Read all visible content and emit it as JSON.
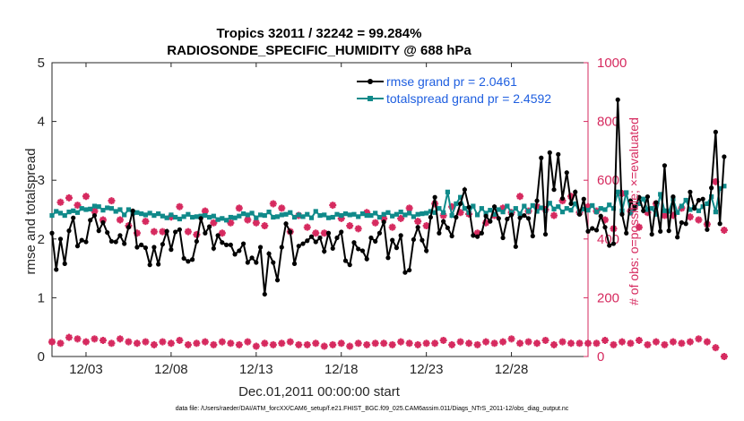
{
  "chart_data": {
    "type": "line",
    "title_line1": "Tropics 32011 / 32242 = 99.284%",
    "title_line2": "RADIOSONDE_SPECIFIC_HUMIDITY @ 688 hPa",
    "xlabel": "Dec.01,2011 00:00:00 start",
    "ylabel_left": "rmse and totalspread",
    "ylabel_right": "# of obs: o=possible; ×=evaluated",
    "footer": "data file: /Users/raeder/DAI/ATM_forcXX/CAM6_setup/f.e21.FHIST_BGC.f09_025.CAM6assim.011/Diags_NTrS_2011-12/obs_diag_output.nc",
    "xlim": [
      1,
      32.5
    ],
    "ylim_left": [
      0,
      5
    ],
    "ylim_right": [
      0,
      1000
    ],
    "xticks": [
      3,
      8,
      13,
      18,
      23,
      28
    ],
    "xtick_labels": [
      "12/03",
      "12/08",
      "12/13",
      "12/18",
      "12/23",
      "12/28"
    ],
    "yticks_left": [
      0,
      1,
      2,
      3,
      4,
      5
    ],
    "yticks_right": [
      0,
      200,
      400,
      600,
      800,
      1000
    ],
    "x_start": 1.0,
    "x_step": 0.25,
    "legend": [
      {
        "name": "rmse grand pr = 2.0461",
        "color": "#000000"
      },
      {
        "name": "totalspread grand pr = 2.4592",
        "color": "#108a8a"
      }
    ],
    "colors": {
      "rmse": "#000000",
      "spread": "#108a8a",
      "obs": "#d62a5f"
    },
    "series": [
      {
        "name": "rmse",
        "values": [
          2.1,
          1.48,
          2.0,
          1.58,
          2.14,
          2.36,
          1.88,
          1.98,
          1.95,
          2.32,
          2.4,
          2.14,
          2.28,
          2.11,
          1.96,
          1.95,
          2.06,
          1.92,
          2.2,
          2.48,
          1.86,
          1.9,
          1.85,
          1.56,
          1.86,
          1.57,
          1.91,
          2.13,
          1.82,
          2.12,
          2.16,
          1.67,
          1.62,
          1.65,
          1.96,
          2.35,
          2.1,
          2.21,
          1.84,
          2.06,
          1.94,
          1.9,
          1.9,
          1.74,
          1.8,
          1.92,
          1.6,
          1.68,
          1.6,
          1.86,
          1.06,
          1.75,
          1.6,
          1.3,
          1.86,
          2.26,
          2.12,
          1.58,
          1.88,
          1.92,
          1.97,
          2.04,
          1.95,
          2.02,
          1.79,
          2.1,
          1.84,
          2.02,
          2.12,
          1.63,
          1.56,
          1.94,
          1.83,
          1.8,
          1.66,
          2.02,
          1.96,
          2.1,
          2.29,
          1.68,
          1.98,
          1.85,
          2.06,
          1.43,
          1.47,
          1.99,
          2.2,
          1.98,
          1.8,
          2.37,
          2.71,
          2.1,
          2.3,
          2.19,
          2.05,
          2.37,
          2.6,
          2.84,
          2.54,
          2.06,
          2.04,
          2.1,
          2.39,
          2.3,
          2.55,
          2.35,
          2.02,
          2.34,
          2.41,
          1.87,
          2.36,
          2.4,
          2.35,
          2.05,
          2.65,
          3.38,
          2.08,
          3.47,
          2.84,
          3.44,
          2.69,
          3.13,
          2.6,
          2.8,
          2.42,
          2.68,
          2.13,
          2.18,
          2.15,
          2.39,
          2.2,
          1.89,
          1.92,
          4.37,
          2.42,
          2.1,
          2.65,
          2.52,
          2.71,
          2.48,
          2.72,
          2.08,
          2.62,
          2.13,
          3.25,
          2.14,
          2.72,
          2.03,
          2.28,
          2.26,
          2.8,
          2.52,
          2.66,
          2.68,
          2.16,
          2.87,
          3.82,
          2.26,
          3.4
        ],
        "color": "#000000"
      },
      {
        "name": "totalspread",
        "values": [
          2.4,
          2.47,
          2.44,
          2.4,
          2.46,
          2.48,
          2.45,
          2.52,
          2.5,
          2.51,
          2.56,
          2.55,
          2.49,
          2.53,
          2.52,
          2.47,
          2.5,
          2.41,
          2.5,
          2.44,
          2.45,
          2.43,
          2.41,
          2.44,
          2.4,
          2.43,
          2.39,
          2.36,
          2.41,
          2.37,
          2.34,
          2.38,
          2.42,
          2.37,
          2.38,
          2.39,
          2.4,
          2.37,
          2.39,
          2.33,
          2.35,
          2.32,
          2.37,
          2.36,
          2.39,
          2.43,
          2.41,
          2.44,
          2.36,
          2.41,
          2.4,
          2.46,
          2.37,
          2.38,
          2.41,
          2.42,
          2.45,
          2.37,
          2.41,
          2.38,
          2.42,
          2.36,
          2.47,
          2.4,
          2.41,
          2.36,
          2.37,
          2.42,
          2.4,
          2.43,
          2.41,
          2.42,
          2.38,
          2.43,
          2.4,
          2.4,
          2.44,
          2.37,
          2.42,
          2.45,
          2.39,
          2.42,
          2.46,
          2.41,
          2.44,
          2.38,
          2.42,
          2.43,
          2.44,
          2.47,
          2.45,
          2.52,
          2.45,
          2.8,
          2.4,
          2.6,
          2.71,
          2.52,
          2.45,
          2.56,
          2.41,
          2.52,
          2.44,
          2.49,
          2.42,
          2.5,
          2.46,
          2.56,
          2.45,
          2.52,
          2.43,
          2.56,
          2.47,
          2.57,
          2.47,
          2.53,
          2.48,
          2.61,
          2.51,
          2.55,
          2.46,
          2.52,
          2.49,
          2.6,
          2.45,
          2.51,
          2.49,
          2.57,
          2.46,
          2.52,
          2.5,
          2.58,
          2.52,
          2.8,
          2.48,
          2.79,
          2.44,
          2.54,
          2.6,
          2.68,
          2.5,
          2.52,
          2.42,
          2.76,
          2.48,
          2.47,
          2.68,
          2.45,
          2.56,
          2.66,
          2.5,
          2.54,
          2.48,
          2.55,
          2.6,
          2.72,
          2.46,
          2.86,
          2.9
        ],
        "color": "#108a8a"
      },
      {
        "name": "obs possible/evaluated",
        "axis": "right",
        "values": [
          50,
          490,
          525,
          575,
          540,
          575,
          515,
          460,
          545,
          475,
          495,
          510,
          465,
          505,
          530,
          460,
          465,
          485,
          445,
          460,
          420,
          455,
          460,
          435,
          425,
          440,
          425,
          530,
          475,
          565,
          510,
          455,
          425,
          440,
          415,
          470,
          495,
          510,
          455,
          435,
          420,
          430,
          455,
          510,
          505,
          460,
          465,
          470,
          455,
          445,
          445,
          520,
          520,
          435,
          505,
          420,
          425,
          440,
          480,
          455,
          440,
          430,
          420,
          415,
          420,
          465,
          515,
          490,
          470,
          510,
          445,
          440,
          435,
          475,
          490,
          460,
          455,
          450,
          470,
          445,
          440,
          455,
          470,
          410,
          505,
          480,
          460,
          475,
          445,
          500,
          520,
          565,
          480,
          560,
          510,
          480,
          490,
          495,
          485,
          460,
          420,
          510,
          455,
          495,
          480,
          450,
          505,
          495,
          490,
          460,
          545,
          480,
          495,
          510,
          510,
          545,
          500,
          490,
          480,
          565,
          530,
          480,
          545,
          510,
          490,
          510,
          510,
          525,
          495,
          515,
          465,
          510,
          435,
          500,
          555,
          455,
          495,
          500,
          440,
          465,
          490,
          440,
          520,
          485,
          480,
          520,
          480,
          495,
          505,
          430,
          475,
          510,
          465,
          440,
          450,
          510,
          595,
          440,
          430
        ],
        "color": "#d62a5f"
      }
    ],
    "obs_bottom_series": {
      "values": [
        50,
        50,
        45,
        50,
        65,
        75,
        60,
        55,
        50,
        55,
        60,
        65,
        55,
        50,
        45,
        55,
        60,
        70,
        50,
        40,
        45,
        50,
        50,
        45,
        40,
        55,
        50,
        40,
        45,
        60,
        55,
        45,
        40,
        50,
        45,
        40,
        50,
        45,
        40,
        45,
        50,
        40,
        45,
        35,
        40,
        45,
        50,
        40,
        35,
        40,
        45,
        50,
        40,
        35,
        45,
        40,
        50,
        45,
        40,
        45,
        40,
        50,
        45,
        40,
        35,
        45,
        40,
        50,
        45,
        40,
        35,
        40,
        45,
        50,
        40,
        35,
        45,
        40,
        45,
        50,
        40,
        45,
        50,
        40,
        45,
        35,
        40,
        50,
        45,
        40,
        45,
        50,
        55,
        45,
        40,
        45,
        50,
        55,
        45,
        50,
        40,
        45,
        50,
        55,
        45,
        40,
        50,
        55,
        60,
        50,
        45,
        40,
        50,
        55,
        45,
        50,
        55,
        45,
        40,
        45,
        50,
        55,
        45,
        40,
        45,
        50,
        45,
        40,
        45,
        50,
        55,
        45,
        40,
        45,
        50,
        40,
        45,
        50,
        55,
        45,
        40,
        45,
        50,
        45,
        40,
        45,
        50,
        55,
        45,
        40,
        50,
        55,
        60,
        80,
        50,
        40,
        30,
        20,
        0
      ]
    }
  }
}
